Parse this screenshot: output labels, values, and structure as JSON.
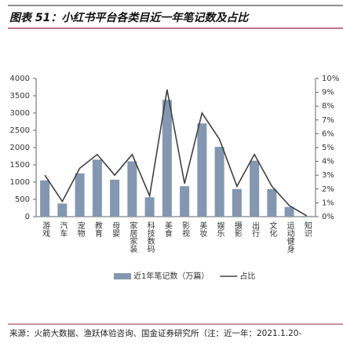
{
  "chart_data": {
    "type": "bar-line",
    "title": "图表 51：小红书平台各类目近一年笔记数及占比",
    "categories": [
      "游戏",
      "汽车",
      "宠物",
      "教育",
      "母婴",
      "家居家装",
      "科技数码",
      "美食",
      "影视",
      "美妆",
      "娱乐",
      "摄影",
      "出行",
      "文化",
      "运动健身",
      "知识"
    ],
    "series": [
      {
        "name": "近1年笔记数（万篇）",
        "color": "#8497b0",
        "type": "bar",
        "values": [
          1050,
          380,
          1250,
          1650,
          1070,
          1600,
          560,
          3380,
          880,
          2700,
          2020,
          800,
          1620,
          800,
          280,
          20
        ]
      },
      {
        "name": "占比",
        "color": "#404040",
        "type": "line",
        "axis": "y2",
        "values": [
          3.0,
          1.1,
          3.5,
          4.5,
          3.0,
          4.5,
          1.5,
          9.2,
          2.4,
          7.5,
          5.6,
          2.2,
          4.5,
          2.2,
          0.8,
          0.05
        ]
      }
    ],
    "ylim": [
      0,
      4000
    ],
    "yticks": [
      0,
      500,
      1000,
      1500,
      2000,
      2500,
      3000,
      3500,
      4000
    ],
    "y2lim": [
      0,
      10
    ],
    "y2ticks": [
      {
        "value": 0,
        "label": "0%"
      },
      {
        "value": 1,
        "label": "1%"
      },
      {
        "value": 2,
        "label": "2%"
      },
      {
        "value": 3,
        "label": "3%"
      },
      {
        "value": 4,
        "label": "4%"
      },
      {
        "value": 5,
        "label": "5%"
      },
      {
        "value": 6,
        "label": "6%"
      },
      {
        "value": 7,
        "label": "7%"
      },
      {
        "value": 8,
        "label": "8%"
      },
      {
        "value": 9,
        "label": "9%"
      },
      {
        "value": 10,
        "label": "10%"
      }
    ],
    "legend": "bottom",
    "source": "来源：火箭大数据、渔跃体验咨询、国金证券研究所（注：近一年：2021.1.20-"
  }
}
